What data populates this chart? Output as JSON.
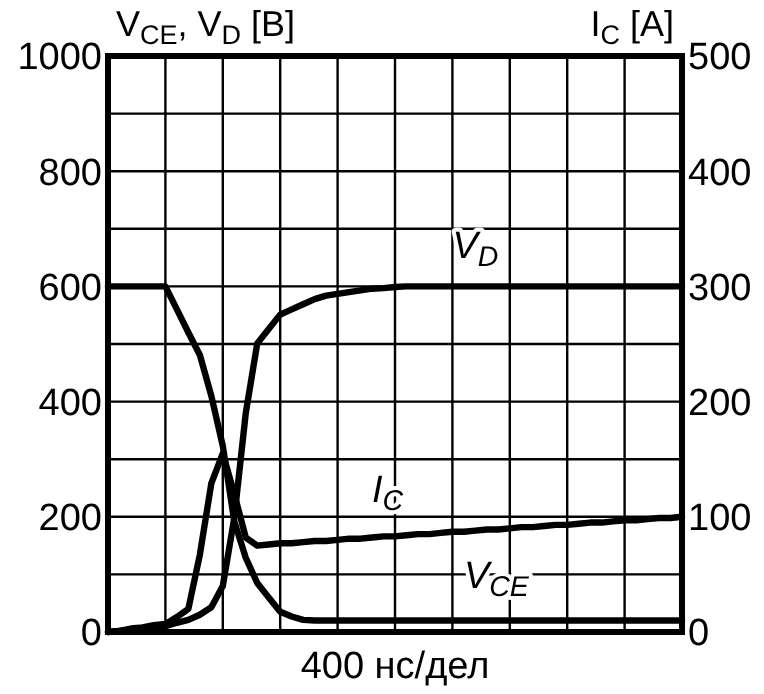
{
  "chart_data": {
    "type": "line",
    "ylabel": "V$_{CE}$, V$_{D}$ [B]",
    "y2label": "I$_{C}$ [A]",
    "annotations": [
      "400 нс/дел"
    ],
    "categories": [
      null,
      null,
      null,
      null,
      null,
      null,
      null,
      null,
      null,
      null,
      null,
      null,
      null,
      null,
      null,
      null,
      null,
      null,
      null,
      null,
      null,
      null,
      null,
      null,
      null,
      null,
      null,
      null,
      null,
      null,
      null,
      null,
      null,
      null,
      null,
      null,
      null,
      null,
      null,
      null,
      null,
      null,
      null,
      null,
      null,
      null,
      null,
      null,
      null,
      null,
      null
    ],
    "ylim": [
      0,
      1000
    ],
    "yticks": [
      0,
      {
        "value": 100,
        "label": null
      },
      200,
      {
        "value": 300,
        "label": null
      },
      400,
      {
        "value": 500,
        "label": null
      },
      600,
      {
        "value": 700,
        "label": null
      },
      800,
      {
        "value": 900,
        "label": null
      },
      1000
    ],
    "y2lim": [
      0,
      500
    ],
    "y2ticks": [
      0,
      100,
      200,
      300,
      400,
      500
    ],
    "grid": true,
    "marker": "none",
    "line_style": "solid",
    "series": [
      {
        "name": "V$_{CE}$",
        "color": "#000000",
        "values": [
          600,
          600,
          600,
          600,
          600,
          600,
          560,
          520,
          481,
          410,
          323,
          192,
          129,
          85,
          60,
          35,
          27,
          21,
          20,
          20,
          20,
          20,
          20,
          20,
          20,
          20,
          20,
          20,
          20,
          20,
          20,
          20,
          20,
          20,
          20,
          20,
          20,
          20,
          20,
          20,
          20,
          20,
          20,
          20,
          20,
          20,
          20,
          20,
          20,
          20,
          20
        ]
      },
      {
        "name": "V$_{D}$",
        "color": "#000000",
        "values": [
          0,
          2,
          4,
          6,
          8,
          10,
          16,
          21,
          30,
          43,
          80,
          198,
          380,
          501,
          526,
          551,
          560,
          569,
          578,
          584,
          587,
          590,
          593,
          596,
          597,
          599,
          600,
          600,
          600,
          600,
          600,
          600,
          600,
          600,
          600,
          600,
          600,
          600,
          600,
          600,
          600,
          600,
          600,
          600,
          600,
          600,
          600,
          600,
          600,
          600,
          600
        ]
      },
      {
        "name": "I$_{C}$",
        "color": "#000000",
        "axis": "y2",
        "values": [
          0,
          1,
          3,
          4,
          6,
          7,
          13,
          20,
          67,
          129,
          155,
          120,
          82,
          75,
          76,
          77,
          77,
          78,
          79,
          79,
          80,
          81,
          81,
          82,
          83,
          83,
          84,
          85,
          85,
          86,
          87,
          87,
          88,
          89,
          89,
          90,
          91,
          91,
          92,
          93,
          93,
          94,
          95,
          95,
          96,
          97,
          97,
          98,
          99,
          99,
          100
        ]
      }
    ]
  }
}
